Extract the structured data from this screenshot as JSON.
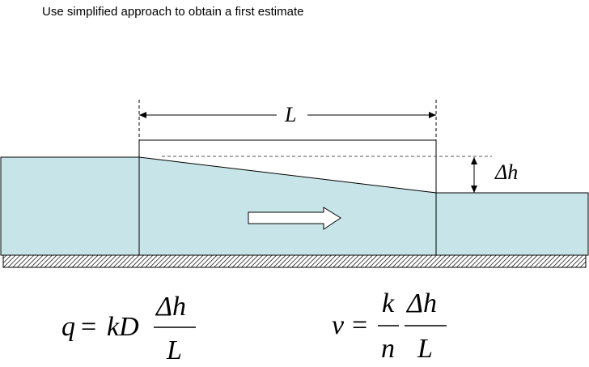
{
  "caption": "Use simplified approach to obtain a first estimate",
  "diagram": {
    "length_label": "L",
    "head_drop_label": "Δh",
    "water_color": "#c7e5e8",
    "outline_color": "#000000"
  },
  "formulas": {
    "q": {
      "lhs": "q",
      "eq": "=",
      "coef": "kD",
      "num": "Δh",
      "den": "L"
    },
    "v": {
      "lhs": "v",
      "eq": "=",
      "f1_num": "k",
      "f1_den": "n",
      "num": "Δh",
      "den": "L"
    }
  }
}
